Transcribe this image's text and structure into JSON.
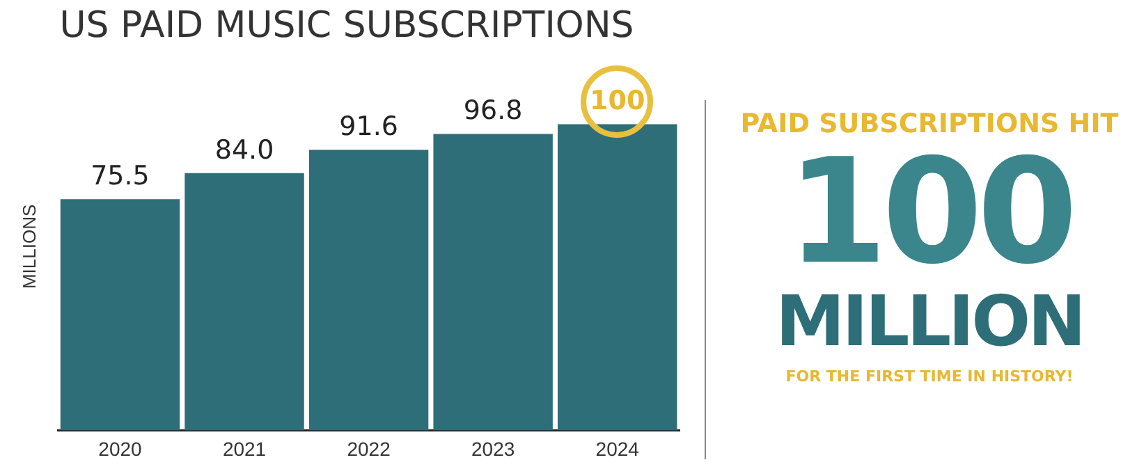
{
  "chart_data": {
    "type": "bar",
    "title": "US PAID MUSIC SUBSCRIPTIONS",
    "ylabel": "MILLIONS",
    "categories": [
      "2020",
      "2021",
      "2022",
      "2023",
      "2024"
    ],
    "values": [
      75.5,
      84.0,
      91.6,
      96.8,
      100
    ],
    "value_labels": [
      "75.5",
      "84.0",
      "91.6",
      "96.8",
      "100"
    ],
    "color": "#2d6e78",
    "grid": false,
    "legend": false,
    "annotations": [
      "PAID SUBSCRIPTIONS HIT",
      "100",
      "MILLION",
      "FOR THE FIRST TIME IN HISTORY!"
    ]
  }
}
